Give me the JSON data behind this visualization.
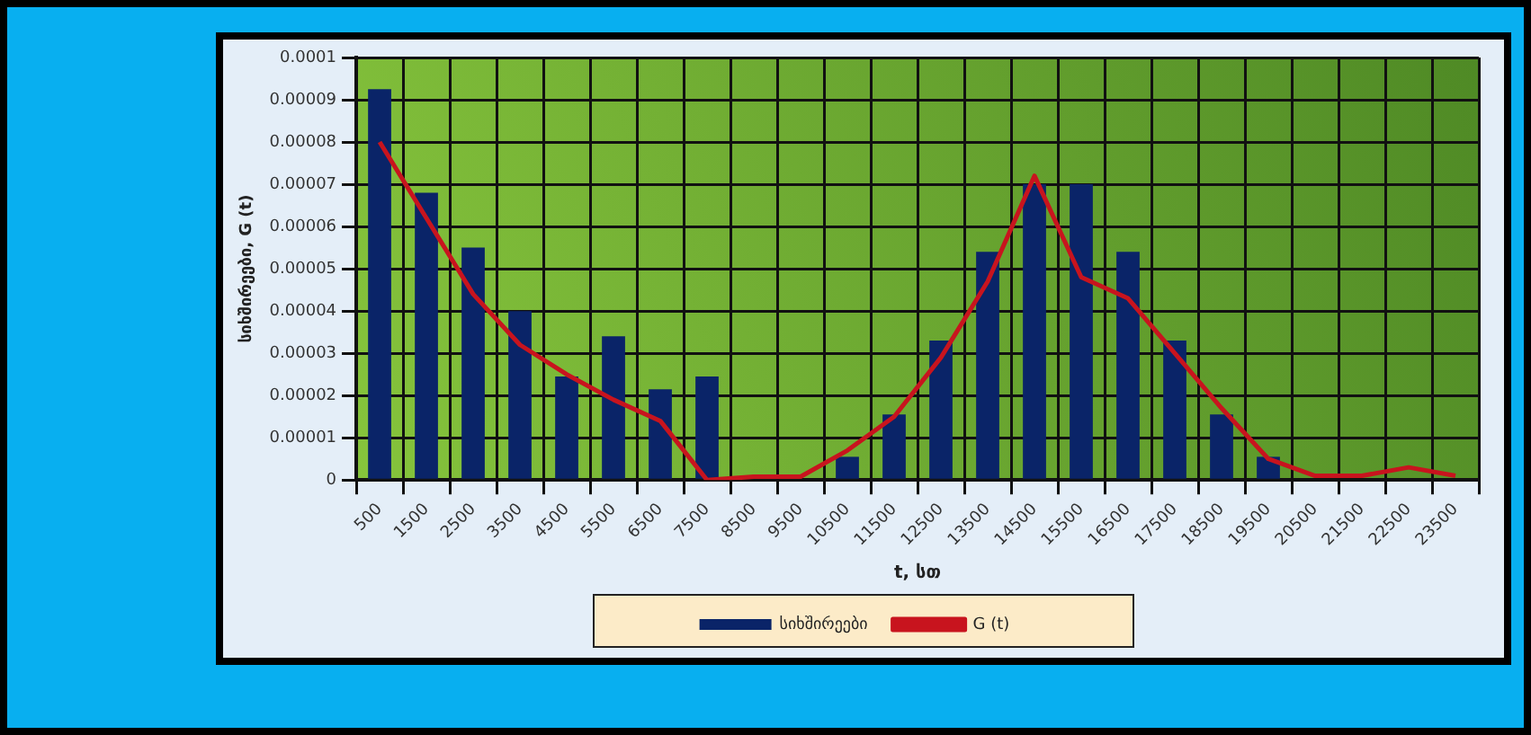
{
  "chart_data": {
    "type": "bar",
    "xlabel": "t, სთ",
    "ylabel": "სიხშირეები, G (t)",
    "categories": [
      "500",
      "1500",
      "2500",
      "3500",
      "4500",
      "5500",
      "6500",
      "7500",
      "8500",
      "9500",
      "10500",
      "11500",
      "12500",
      "13500",
      "14500",
      "15500",
      "16500",
      "17500",
      "18500",
      "19500",
      "20500",
      "21500",
      "22500",
      "23500"
    ],
    "series": [
      {
        "name": "სიხშირეები",
        "color": "#0a2468",
        "values": [
          9.25e-05,
          6.8e-05,
          5.5e-05,
          4e-05,
          2.45e-05,
          3.4e-05,
          2.15e-05,
          2.45e-05,
          0,
          0,
          5.5e-06,
          1.55e-05,
          3.3e-05,
          5.4e-05,
          7e-05,
          7e-05,
          5.4e-05,
          3.3e-05,
          1.55e-05,
          5.5e-06,
          0,
          0,
          0,
          0
        ]
      },
      {
        "name": "G (t)",
        "type": "line",
        "color": "#c8141e",
        "values": [
          8e-05,
          6.2e-05,
          4.4e-05,
          3.2e-05,
          2.5e-05,
          1.9e-05,
          1.4e-05,
          0,
          8e-07,
          8e-07,
          7e-06,
          1.5e-05,
          2.9e-05,
          4.7e-05,
          7.2e-05,
          4.8e-05,
          4.3e-05,
          3e-05,
          1.7e-05,
          5e-06,
          1e-06,
          1e-06,
          3e-06,
          1e-06
        ]
      }
    ],
    "ylim": [
      0,
      0.0001
    ],
    "yticks": [
      0,
      {
        "value": 1e-05,
        "label": "0.00001"
      },
      {
        "value": 2e-05,
        "label": "0.00002"
      },
      {
        "value": 3e-05,
        "label": "0.00003"
      },
      {
        "value": 4e-05,
        "label": "0.00004"
      },
      {
        "value": 5e-05,
        "label": "0.00005"
      },
      {
        "value": 6e-05,
        "label": "0.00006"
      },
      {
        "value": 7e-05,
        "label": "0.00007"
      },
      {
        "value": 8e-05,
        "label": "0.00008"
      },
      {
        "value": 9e-05,
        "label": "0.00009"
      },
      {
        "value": 0.0001,
        "label": "0.0001"
      }
    ],
    "grid": true,
    "legend": "bottom",
    "marker": "none"
  }
}
